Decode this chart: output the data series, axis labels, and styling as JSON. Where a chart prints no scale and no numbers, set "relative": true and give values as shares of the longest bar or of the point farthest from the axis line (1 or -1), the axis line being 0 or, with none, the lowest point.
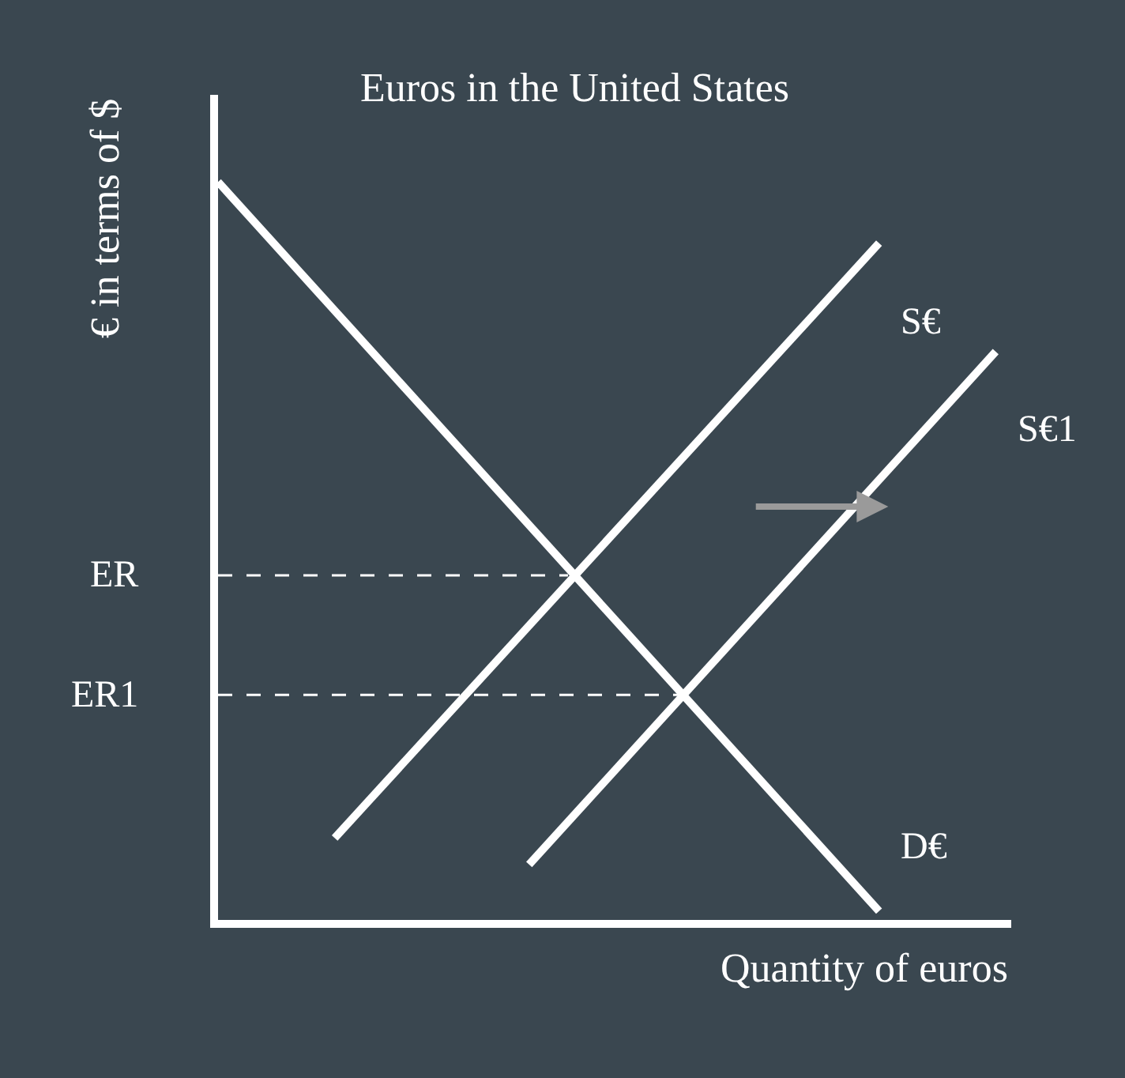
{
  "chart_data": {
    "type": "line",
    "title": "Euros in the United States",
    "xlabel": "Quantity of euros",
    "ylabel": "€ in terms of $",
    "relative": true,
    "legend": false,
    "grid": false,
    "marker": "none",
    "categories": [
      null,
      null,
      null,
      null,
      null,
      null,
      null,
      null,
      null,
      null,
      null,
      null,
      null,
      null,
      null,
      null,
      null,
      null,
      null,
      null,
      null
    ],
    "series": [
      {
        "name": "S€",
        "color": "#ffffff",
        "values": [
          null,
          null,
          null,
          0.111,
          null,
          null,
          null,
          null,
          null,
          null,
          null,
          null,
          null,
          null,
          null,
          null,
          null,
          0.917,
          null,
          null,
          null
        ]
      },
      {
        "name": "S€1",
        "color": "#ffffff",
        "values": [
          null,
          null,
          null,
          null,
          null,
          null,
          null,
          null,
          0.075,
          null,
          null,
          null,
          null,
          null,
          null,
          null,
          null,
          null,
          null,
          null,
          0.77
        ]
      },
      {
        "name": "D€",
        "color": "#ffffff",
        "values": [
          1,
          null,
          null,
          null,
          null,
          null,
          null,
          null,
          null,
          null,
          null,
          null,
          null,
          null,
          null,
          null,
          null,
          0.012,
          null,
          null,
          null
        ]
      },
      {
        "color": "#ffffff",
        "line_style": "dashed",
        "values": [
          0.467,
          null,
          null,
          null,
          null,
          null,
          null,
          null,
          null,
          0.467,
          null,
          null,
          null,
          null,
          null,
          null,
          null,
          null,
          null,
          null,
          null
        ]
      },
      {
        "color": "#ffffff",
        "line_style": "dashed",
        "values": [
          0.305,
          null,
          null,
          null,
          null,
          null,
          null,
          null,
          null,
          null,
          null,
          null,
          0.305,
          null,
          null,
          null,
          null,
          null,
          null,
          null,
          null
        ]
      }
    ],
    "annotations": [
      "ER",
      "ER1"
    ]
  }
}
